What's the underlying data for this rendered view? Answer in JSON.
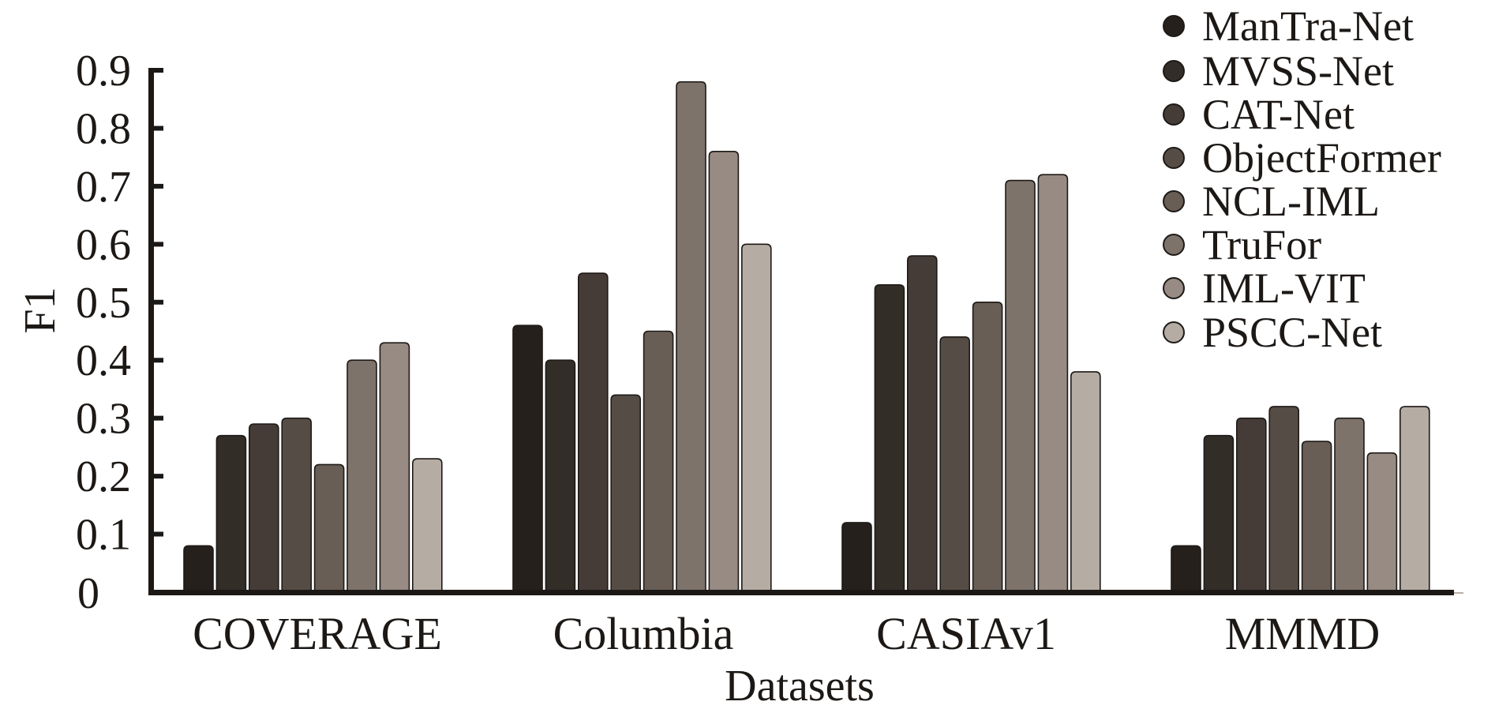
{
  "chart_data": {
    "type": "bar",
    "title": "",
    "xlabel": "Datasets",
    "ylabel": "F1",
    "ylim": [
      0,
      0.9
    ],
    "yticks": [
      0,
      0.1,
      0.2,
      0.3,
      0.4,
      0.5,
      0.6,
      0.7,
      0.8,
      0.9
    ],
    "ytick_labels": [
      "0",
      "0.1",
      "0.2",
      "0.3",
      "0.4",
      "0.5",
      "0.6",
      "0.7",
      "0.8",
      "0.9"
    ],
    "grid": false,
    "legend_position": "top-right",
    "categories": [
      "COVERAGE",
      "Columbia",
      "CASIAv1",
      "MMMD"
    ],
    "series": [
      {
        "name": "ManTra-Net",
        "color": "#25201c",
        "values": [
          0.08,
          0.46,
          0.12,
          0.08
        ]
      },
      {
        "name": "MVSS-Net",
        "color": "#332d28",
        "values": [
          0.27,
          0.4,
          0.53,
          0.27
        ]
      },
      {
        "name": "CAT-Net",
        "color": "#453c37",
        "values": [
          0.29,
          0.55,
          0.58,
          0.3
        ]
      },
      {
        "name": "ObjectFormer",
        "color": "#564c46",
        "values": [
          0.3,
          0.34,
          0.44,
          0.32
        ]
      },
      {
        "name": "NCL-IML",
        "color": "#685e56",
        "values": [
          0.22,
          0.45,
          0.5,
          0.26
        ]
      },
      {
        "name": "TruFor",
        "color": "#7d736b",
        "values": [
          0.4,
          0.88,
          0.71,
          0.3
        ]
      },
      {
        "name": "IML-VIT",
        "color": "#978b83",
        "values": [
          0.43,
          0.76,
          0.72,
          0.24
        ]
      },
      {
        "name": "PSCC-Net",
        "color": "#b5aca4",
        "values": [
          0.23,
          0.6,
          0.38,
          0.32
        ]
      }
    ]
  }
}
